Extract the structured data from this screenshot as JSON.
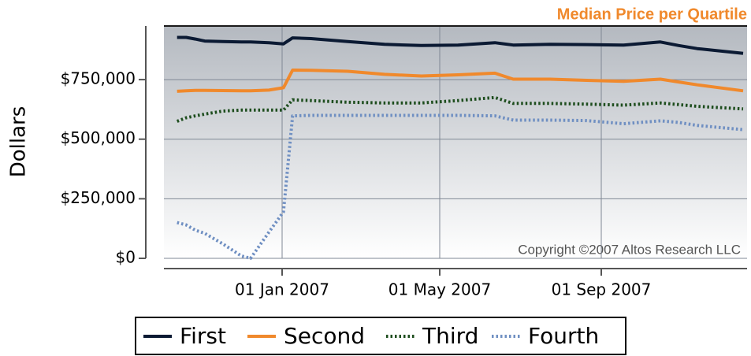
{
  "chart_data": {
    "type": "line",
    "title": "Median Price per Quartile",
    "y_label": "Dollars",
    "annotation": "Copyright ©2007 Altos Research LLC",
    "x": [
      "2006-10-13",
      "2006-10-20",
      "2006-10-27",
      "2006-11-03",
      "2006-11-17",
      "2006-12-01",
      "2006-12-08",
      "2006-12-22",
      "2007-01-02",
      "2007-01-09",
      "2007-01-23",
      "2007-02-20",
      "2007-03-20",
      "2007-04-17",
      "2007-05-15",
      "2007-06-12",
      "2007-06-26",
      "2007-07-24",
      "2007-08-21",
      "2007-09-18",
      "2007-10-16",
      "2007-10-30",
      "2007-11-13",
      "2007-12-18"
    ],
    "series": [
      {
        "name": "First",
        "color": "#0b1a33",
        "style": "solid",
        "values": [
          927000,
          927000,
          920000,
          912000,
          910000,
          908000,
          908000,
          905000,
          900000,
          925000,
          922000,
          910000,
          898000,
          893000,
          895000,
          905000,
          895000,
          898000,
          897000,
          895000,
          908000,
          893000,
          880000,
          860000
        ]
      },
      {
        "name": "Second",
        "color": "#f0892c",
        "style": "solid",
        "values": [
          701000,
          703000,
          705000,
          705000,
          704000,
          703000,
          703000,
          706000,
          716000,
          790000,
          789000,
          785000,
          772000,
          765000,
          770000,
          777000,
          752000,
          752000,
          747000,
          743000,
          752000,
          740000,
          728000,
          703000
        ]
      },
      {
        "name": "Third",
        "color": "#1d4d1d",
        "style": "dotted",
        "values": [
          575000,
          590000,
          598000,
          605000,
          618000,
          622000,
          622000,
          622000,
          622000,
          665000,
          662000,
          655000,
          652000,
          652000,
          662000,
          675000,
          650000,
          650000,
          647000,
          643000,
          652000,
          645000,
          638000,
          627000
        ]
      },
      {
        "name": "Fourth",
        "color": "#6f8fc2",
        "style": "dotted",
        "values": [
          150000,
          140000,
          118000,
          105000,
          60000,
          10000,
          0,
          110000,
          195000,
          598000,
          600000,
          600000,
          600000,
          600000,
          600000,
          598000,
          580000,
          580000,
          578000,
          565000,
          577000,
          570000,
          558000,
          540000
        ]
      }
    ],
    "xlim": [
      "2006-10-03",
      "2007-12-21"
    ],
    "xticks": [
      {
        "value": "2007-01-01",
        "label": "01 Jan 2007"
      },
      {
        "value": "2007-05-01",
        "label": "01 May 2007"
      },
      {
        "value": "2007-09-01",
        "label": "01 Sep 2007"
      }
    ],
    "ylim": [
      0,
      975000
    ],
    "yticks": [
      {
        "value": 0,
        "label": "$0"
      },
      {
        "value": 250000,
        "label": "$250,000"
      },
      {
        "value": 500000,
        "label": "$500,000"
      },
      {
        "value": 750000,
        "label": "$750,000"
      }
    ],
    "grid": true,
    "legend": "bottom"
  }
}
